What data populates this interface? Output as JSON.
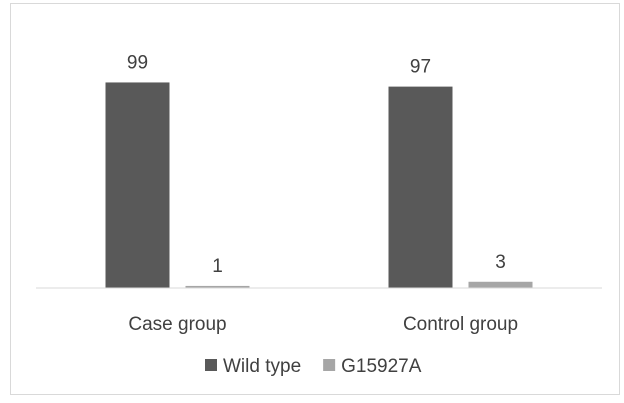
{
  "chart_data": {
    "type": "bar",
    "categories": [
      "Case group",
      "Control group"
    ],
    "series": [
      {
        "name": "Wild type",
        "values": [
          99,
          97
        ],
        "color": "#595959"
      },
      {
        "name": "G15927A",
        "values": [
          1,
          3
        ],
        "color": "#a6a6a6"
      }
    ],
    "data_labels": true,
    "legend_position": "bottom",
    "grid": false,
    "ylim": [
      0,
      105
    ],
    "axis_color": "#d9d9d9",
    "text_color": "#404040"
  }
}
